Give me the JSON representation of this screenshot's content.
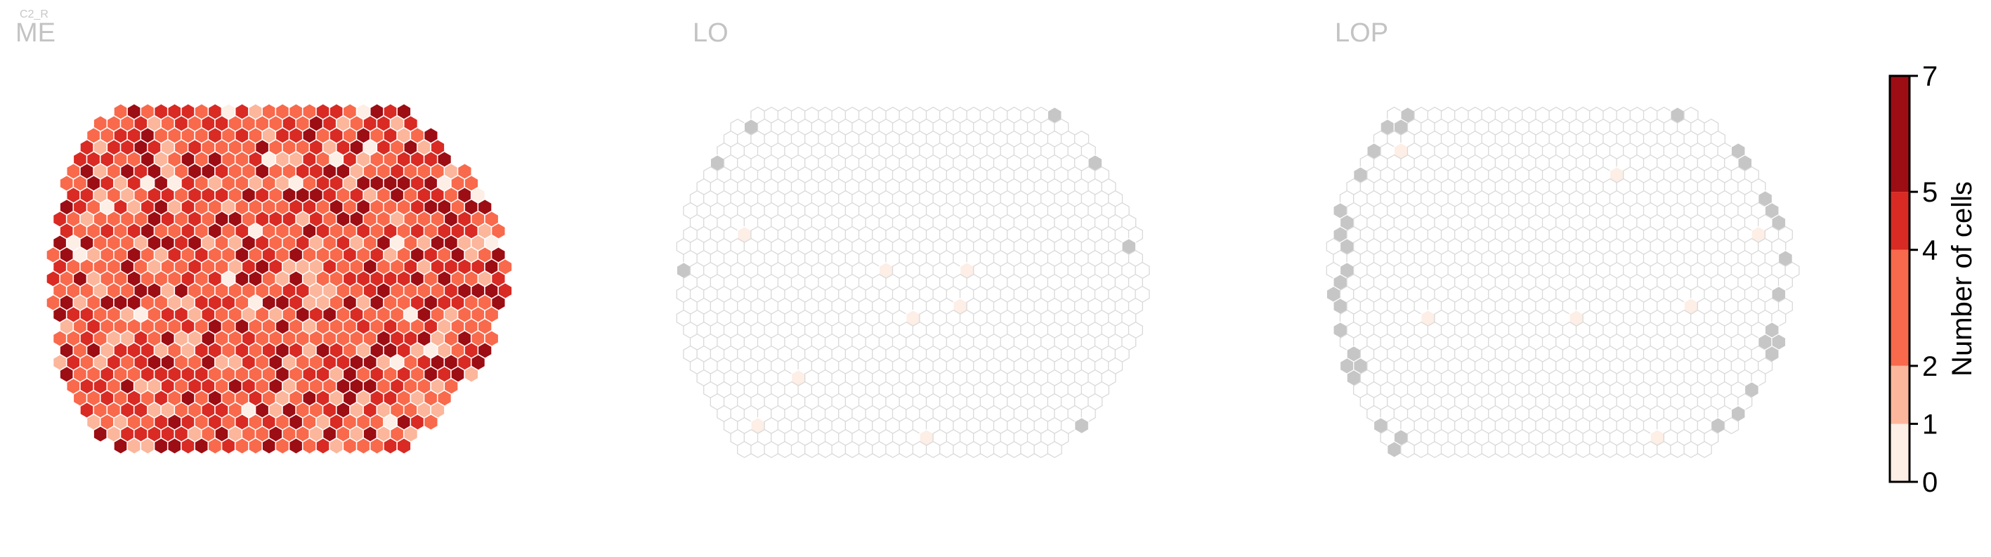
{
  "supertitle": "C2_R",
  "colors": {
    "palette": [
      "#fdeee6",
      "#fcb69b",
      "#f9694c",
      "#d92a24",
      "#9d0d14"
    ],
    "empty_fill": "#ffffff",
    "empty_stroke": "#d9d9d9",
    "gray_fill": "#c6c6c6",
    "text_title": "#c3c3c3",
    "text_axis": "#000000"
  },
  "chart_data": {
    "type": "heatmap",
    "subtype": "hexagonal-eye-map",
    "panels": [
      {
        "title": "ME",
        "coverage": "all columns filled",
        "dominant_values": [
          2,
          3,
          4,
          5,
          6,
          7
        ]
      },
      {
        "title": "LO",
        "coverage": "nearly all columns empty; a few gray columns on the rim",
        "dominant_values": [
          0,
          1
        ]
      },
      {
        "title": "LOP",
        "coverage": "mostly empty; gray columns along the rim; a few light columns",
        "dominant_values": [
          0,
          1
        ]
      }
    ],
    "colorbar": {
      "label": "Number of cells",
      "bin_edges": [
        0,
        1,
        2,
        4,
        5,
        7
      ],
      "tick_labels": [
        "0",
        "1",
        "2",
        "4",
        "5",
        "7"
      ],
      "ylim": [
        0,
        7
      ]
    }
  }
}
